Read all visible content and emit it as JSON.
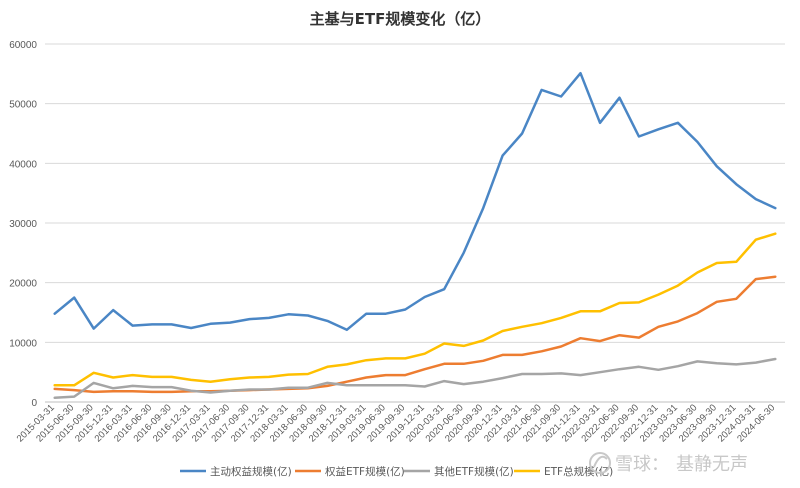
{
  "chart_data": {
    "type": "line",
    "title": "主基与ETF规模变化（亿）",
    "xlabel": "",
    "ylabel": "",
    "ylim": [
      0,
      60000
    ],
    "yticks": [
      0,
      10000,
      20000,
      30000,
      40000,
      50000,
      60000
    ],
    "grid": true,
    "legend": "bottom",
    "categories": [
      "2015-03-31",
      "2015-06-30",
      "2015-09-30",
      "2015-12-31",
      "2016-03-31",
      "2016-06-30",
      "2016-09-30",
      "2016-12-31",
      "2017-03-31",
      "2017-06-30",
      "2017-09-30",
      "2017-12-31",
      "2018-03-31",
      "2018-06-30",
      "2018-09-30",
      "2018-12-31",
      "2019-03-31",
      "2019-06-30",
      "2019-09-30",
      "2019-12-31",
      "2020-03-31",
      "2020-06-30",
      "2020-09-30",
      "2020-12-31",
      "2021-03-31",
      "2021-06-30",
      "2021-09-30",
      "2021-12-31",
      "2022-03-31",
      "2022-06-30",
      "2022-09-30",
      "2022-12-31",
      "2023-03-31",
      "2023-06-30",
      "2023-09-30",
      "2023-12-31",
      "2024-03-31",
      "2024-06-30"
    ],
    "series": [
      {
        "name": "主动权益规模(亿)",
        "color": "#4a86c5",
        "values": [
          14800,
          17500,
          12300,
          15400,
          12800,
          13000,
          13000,
          12400,
          13100,
          13300,
          13900,
          14100,
          14700,
          14500,
          13600,
          12100,
          14800,
          14800,
          15500,
          17600,
          18900,
          25000,
          32500,
          41300,
          45000,
          52300,
          51200,
          55100,
          46800,
          51000,
          44500,
          45700,
          46800,
          43600,
          39500,
          36500,
          34000,
          32500
        ]
      },
      {
        "name": "权益ETF规模(亿)",
        "color": "#ed7d31",
        "values": [
          2200,
          2000,
          1700,
          1800,
          1800,
          1700,
          1700,
          1800,
          1800,
          1900,
          2000,
          2100,
          2200,
          2300,
          2700,
          3400,
          4100,
          4500,
          4500,
          5500,
          6400,
          6400,
          6900,
          7900,
          7900,
          8500,
          9300,
          10700,
          10200,
          11200,
          10800,
          12600,
          13500,
          14900,
          16800,
          17300,
          20600,
          21000
        ]
      },
      {
        "name": "其他ETF规模(亿)",
        "color": "#a5a5a5",
        "values": [
          700,
          900,
          3200,
          2300,
          2700,
          2500,
          2500,
          1900,
          1600,
          1900,
          2100,
          2100,
          2400,
          2400,
          3200,
          2800,
          2800,
          2800,
          2800,
          2600,
          3500,
          3000,
          3400,
          4000,
          4700,
          4700,
          4800,
          4500,
          5000,
          5500,
          5900,
          5400,
          6000,
          6800,
          6500,
          6300,
          6600,
          7200
        ]
      },
      {
        "name": "ETF总规模(亿)",
        "color": "#ffc000",
        "values": [
          2800,
          2800,
          4900,
          4100,
          4500,
          4200,
          4200,
          3700,
          3400,
          3800,
          4100,
          4200,
          4600,
          4700,
          5900,
          6300,
          7000,
          7300,
          7300,
          8100,
          9800,
          9400,
          10300,
          11900,
          12600,
          13200,
          14100,
          15200,
          15200,
          16600,
          16700,
          18000,
          19500,
          21700,
          23300,
          23500,
          27200,
          28200
        ]
      }
    ]
  },
  "watermark": {
    "brand": "雪球",
    "separator": "：",
    "author": "基静无声"
  }
}
